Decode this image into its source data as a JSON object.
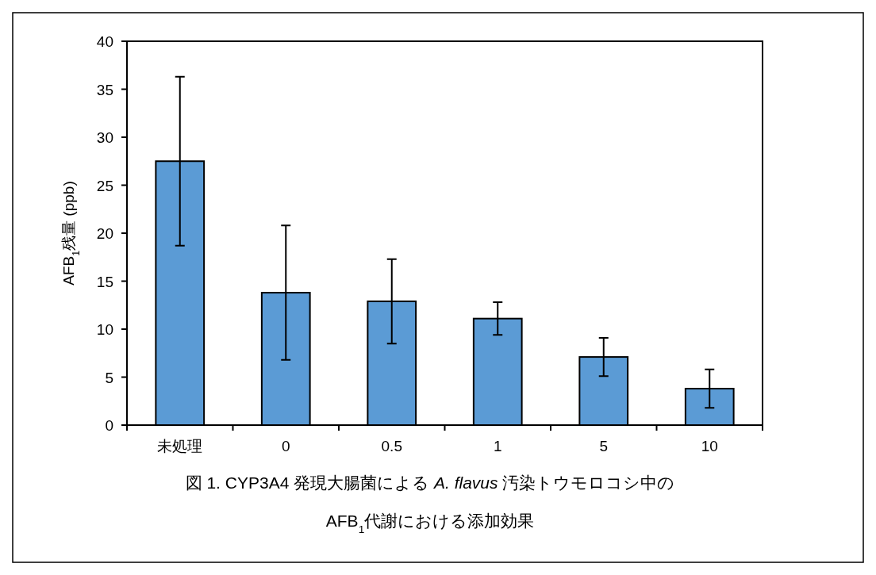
{
  "chart_data": {
    "type": "bar",
    "ylabel": "AFB$_{1}$残量 (ppb)",
    "categories": [
      "未処理",
      "0",
      "0.5",
      "1",
      "5",
      "10"
    ],
    "values": [
      27.5,
      13.8,
      12.9,
      11.1,
      7.1,
      3.8
    ],
    "errors": [
      8.8,
      7.0,
      4.4,
      1.7,
      2.0,
      2.0
    ],
    "color": "#5b9bd5",
    "ylim": [
      0,
      40
    ],
    "yticks": [
      0,
      5,
      10,
      15,
      20,
      25,
      30,
      35,
      40
    ],
    "grid": false,
    "annotations": [
      "図 1. CYP3A4 発現大腸菌による *A. flavus* 汚染トウモロコシ中の",
      "AFB$_{1}$代謝における添加効果"
    ]
  }
}
